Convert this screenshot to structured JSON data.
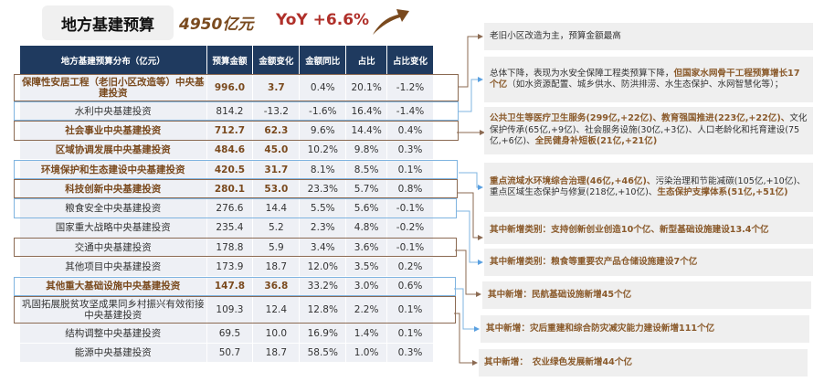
{
  "header": {
    "title": "地方基建预算",
    "total": "4950亿元",
    "yoy": "YoY +6.6%",
    "arrow_icon": "trend-up-arrow"
  },
  "table": {
    "columns": [
      "地方基建预算分布（亿元）",
      "预算金额",
      "金额变化",
      "金额同比",
      "占比",
      "占比变化"
    ],
    "rows": [
      {
        "name": "保障性安居工程（老旧小区改造等）中央基建投资",
        "amount": "996.0",
        "change": "3.7",
        "yoy": "0.4%",
        "share": "20.1%",
        "share_change": "-1.2%",
        "bold": true,
        "box": "brown"
      },
      {
        "name": "水利中央基建投资",
        "amount": "814.2",
        "change": "-13.2",
        "yoy": "-1.6%",
        "share": "16.4%",
        "share_change": "-1.4%",
        "bold": false,
        "box": "blue"
      },
      {
        "name": "社会事业中央基建投资",
        "amount": "712.7",
        "change": "62.3",
        "yoy": "9.6%",
        "share": "14.4%",
        "share_change": "0.4%",
        "bold": true,
        "box": "brown"
      },
      {
        "name": "区域协调发展中央基建投资",
        "amount": "484.6",
        "change": "45.0",
        "yoy": "10.2%",
        "share": "9.8%",
        "share_change": "0.3%",
        "bold": true,
        "box": ""
      },
      {
        "name": "环境保护和生态建设中央基建投资",
        "amount": "420.5",
        "change": "31.7",
        "yoy": "8.1%",
        "share": "8.5%",
        "share_change": "0.1%",
        "bold": true,
        "box": "blue"
      },
      {
        "name": "科技创新中央基建投资",
        "amount": "280.1",
        "change": "53.0",
        "yoy": "23.3%",
        "share": "5.7%",
        "share_change": "0.8%",
        "bold": true,
        "box": "brown"
      },
      {
        "name": "粮食安全中央基建投资",
        "amount": "276.6",
        "change": "14.4",
        "yoy": "5.5%",
        "share": "5.6%",
        "share_change": "-0.1%",
        "bold": false,
        "box": "blue"
      },
      {
        "name": "国家重大战略中央基建投资",
        "amount": "235.4",
        "change": "5.2",
        "yoy": "2.3%",
        "share": "4.8%",
        "share_change": "-0.2%",
        "bold": false,
        "box": ""
      },
      {
        "name": "交通中央基建投资",
        "amount": "178.8",
        "change": "5.9",
        "yoy": "3.4%",
        "share": "3.6%",
        "share_change": "-0.1%",
        "bold": false,
        "box": "brown"
      },
      {
        "name": "其他项目中央基建投资",
        "amount": "173.9",
        "change": "18.7",
        "yoy": "12.0%",
        "share": "3.5%",
        "share_change": "0.2%",
        "bold": false,
        "box": ""
      },
      {
        "name": "其他重大基础设施中央基建投资",
        "amount": "147.8",
        "change": "36.8",
        "yoy": "33.2%",
        "share": "3.0%",
        "share_change": "0.6%",
        "bold": true,
        "box": "blue"
      },
      {
        "name": "巩固拓展脱贫攻坚成果同乡村振兴有效衔接中央基建投资",
        "amount": "109.3",
        "change": "12.4",
        "yoy": "12.8%",
        "share": "2.2%",
        "share_change": "0.1%",
        "bold": false,
        "box": "brown"
      },
      {
        "name": "结构调整中央基建投资",
        "amount": "69.5",
        "change": "10.0",
        "yoy": "16.9%",
        "share": "1.4%",
        "share_change": "0.1%",
        "bold": false,
        "box": ""
      },
      {
        "name": "能源中央基建投资",
        "amount": "50.7",
        "change": "18.7",
        "yoy": "58.5%",
        "share": "1.0%",
        "share_change": "0.3%",
        "bold": false,
        "box": ""
      }
    ]
  },
  "notes": [
    {
      "parts": [
        {
          "t": "老旧小区改造为主，预算金额最高",
          "h": false
        }
      ]
    },
    {
      "parts": [
        {
          "t": "总体下降，表现为水安全保障工程类预算下降，",
          "h": false
        },
        {
          "t": "但国家水网骨干工程预算增长17个亿",
          "h": true
        },
        {
          "t": "（如水资源配置、城乡供水、防洪排涝、水生态保护、水网智慧化等）；",
          "h": false
        }
      ]
    },
    {
      "parts": [
        {
          "t": "公共卫生等医疗卫生服务(299亿,+22亿)、教育强国推进(223亿,+22亿)、",
          "h": true
        },
        {
          "t": "文化保护传承(65亿,+9亿)、社会服务设施(30亿,+3亿)、人口老龄化和托育建设(75亿,+6亿)、",
          "h": false
        },
        {
          "t": "全民健身补短板(21亿,+21亿)",
          "h": true
        }
      ]
    },
    {
      "parts": [
        {
          "t": "重点流域水环境综合治理(46亿,+46亿)、",
          "h": true
        },
        {
          "t": "污染治理和节能减碳(105亿,+10亿)、重点区域生态保护与修复(218亿,+10亿)、",
          "h": false
        },
        {
          "t": "生态保护支撑体系(51亿,+51亿)",
          "h": true
        }
      ]
    },
    {
      "parts": [
        {
          "t": "其中新增类别：支持创新创业创造10个亿、新型基础设施建设13.4个亿",
          "h": true
        }
      ]
    },
    {
      "parts": [
        {
          "t": "其中新增类别：粮食等重要农产品仓储设施建设7个亿",
          "h": true
        }
      ]
    },
    {
      "parts": [
        {
          "t": "其中新增：民航基础设施新增45个亿",
          "h": true
        }
      ]
    },
    {
      "parts": [
        {
          "t": "其中新增：灾后重建和综合防灾减灾能力建设新增111个亿",
          "h": true
        }
      ]
    },
    {
      "parts": [
        {
          "t": "其中新增：　农业绿色发展新增44个亿",
          "h": true
        }
      ]
    }
  ],
  "colors": {
    "header_bg": "#1f3a5f",
    "highlight_brown": "#8a5a2b",
    "box_brown": "#8b6a52",
    "box_blue": "#7fb4e0",
    "yoy_red": "#b0302a"
  }
}
